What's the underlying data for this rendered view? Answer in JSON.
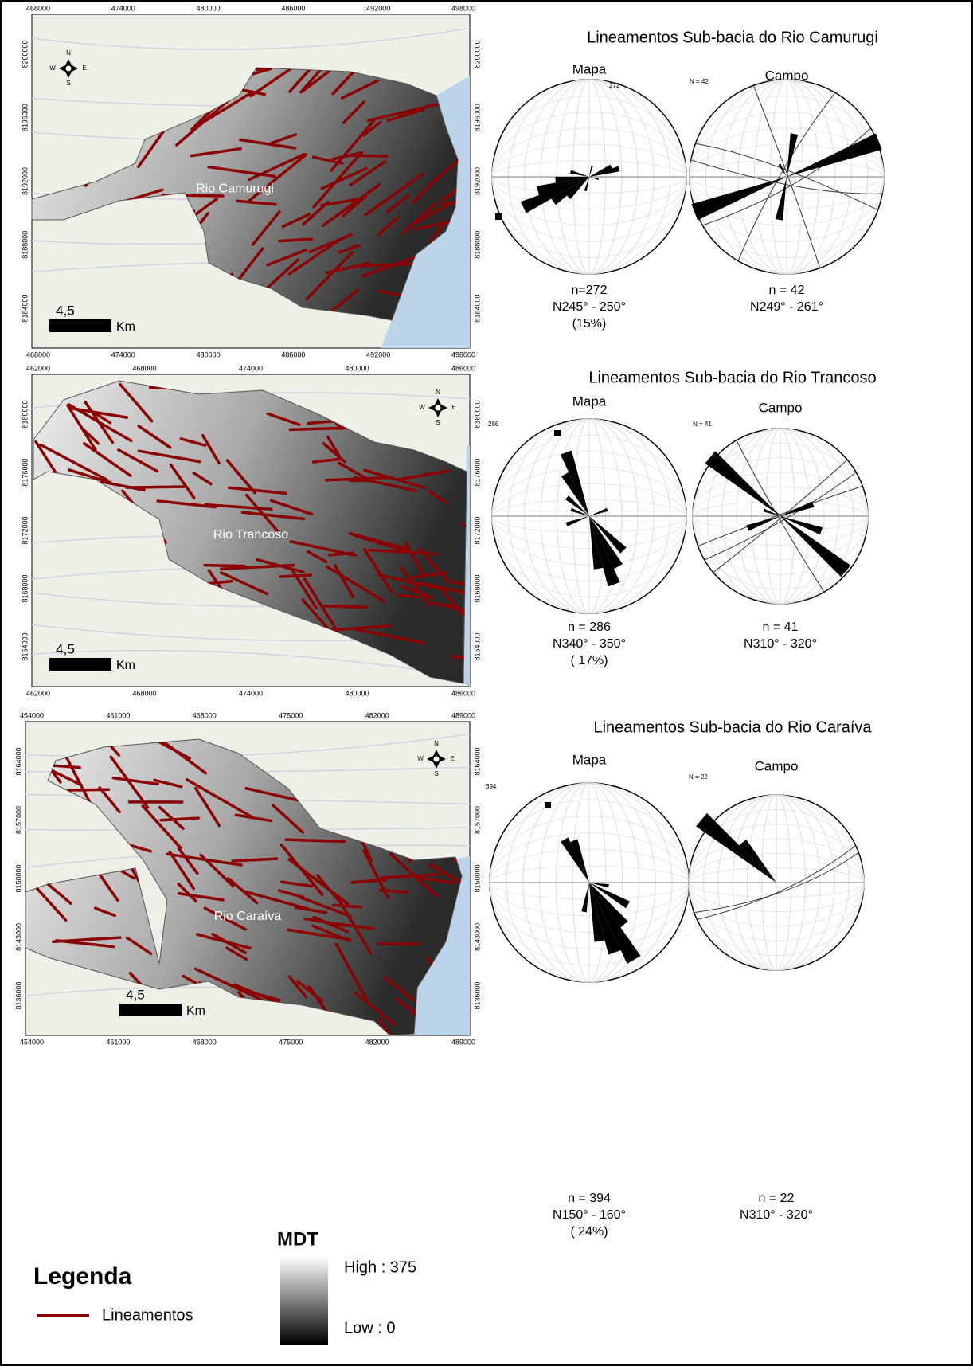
{
  "maps": [
    {
      "river": "Rio Camurugi",
      "x_top": [
        "468000",
        "474000",
        "480000",
        "486000",
        "492000",
        "498000"
      ],
      "x_bottom": [
        "468000",
        "474000",
        "480000",
        "486000",
        "492000",
        "498000"
      ],
      "y_left": [
        "8200000",
        "8196000",
        "8192000",
        "8188000",
        "8184000"
      ],
      "y_right": [
        "8200000",
        "8196000",
        "8192000",
        "8188000",
        "8184000"
      ],
      "scale": "4,5",
      "scale_unit": "Km",
      "compass": {
        "n": "N",
        "s": "S",
        "e": "E",
        "w": "W"
      }
    },
    {
      "river": "Rio Trancoso",
      "x_top": [
        "462000",
        "468000",
        "474000",
        "480000",
        "486000"
      ],
      "x_bottom": [
        "462000",
        "468000",
        "474000",
        "480000",
        "486000"
      ],
      "y_left": [
        "8180000",
        "8176000",
        "8172000",
        "8168000",
        "8164000"
      ],
      "y_right": [
        "8180000",
        "8176000",
        "8172000",
        "8168000",
        "8164000"
      ],
      "scale": "4,5",
      "scale_unit": "Km",
      "compass": {
        "n": "N",
        "s": "S",
        "e": "E",
        "w": "W"
      }
    },
    {
      "river": "Rio Caraíva",
      "x_top": [
        "454000",
        "461000",
        "468000",
        "475000",
        "482000",
        "489000"
      ],
      "x_bottom": [
        "454000",
        "461000",
        "468000",
        "475000",
        "482000",
        "489000"
      ],
      "y_left": [
        "8164000",
        "8157000",
        "8150000",
        "8143000",
        "8136000"
      ],
      "y_right": [
        "8164000",
        "8157000",
        "8150000",
        "8143000",
        "8136000"
      ],
      "scale": "4,5",
      "scale_unit": "Km",
      "compass": {
        "n": "N",
        "s": "S",
        "e": "E",
        "w": "W"
      }
    }
  ],
  "roses": [
    {
      "title": "Lineamentos Sub-bacia do Rio Camurugi",
      "mapa": {
        "label": "Mapa",
        "count_tag": "272",
        "n": "n=272",
        "direction": "N245° - 250°",
        "percent": "(15%)"
      },
      "campo": {
        "label": "Campo",
        "count_tag": "N = 42",
        "n": "n = 42",
        "direction": "N249° - 261°"
      }
    },
    {
      "title": "Lineamentos Sub-bacia do Rio Trancoso",
      "mapa": {
        "label": "Mapa",
        "count_tag": "286",
        "n": "n = 286",
        "direction": "N340° - 350°",
        "percent": "( 17%)"
      },
      "campo": {
        "label": "Campo",
        "count_tag": "N = 41",
        "n": "n = 41",
        "direction": "N310° - 320°"
      }
    },
    {
      "title": "Lineamentos Sub-bacia do Rio Caraíva",
      "mapa": {
        "label": "Mapa",
        "count_tag": "394",
        "n": "n = 394",
        "direction": "N150° - 160°",
        "percent": "( 24%)"
      },
      "campo": {
        "label": "Campo",
        "count_tag": "N = 22",
        "n": "n = 22",
        "direction": "N310° - 320°"
      }
    }
  ],
  "legend": {
    "title": "Legenda",
    "line_label": "Lineamentos",
    "dem_title": "MDT",
    "high": "High : 375",
    "low": "Low : 0"
  }
}
